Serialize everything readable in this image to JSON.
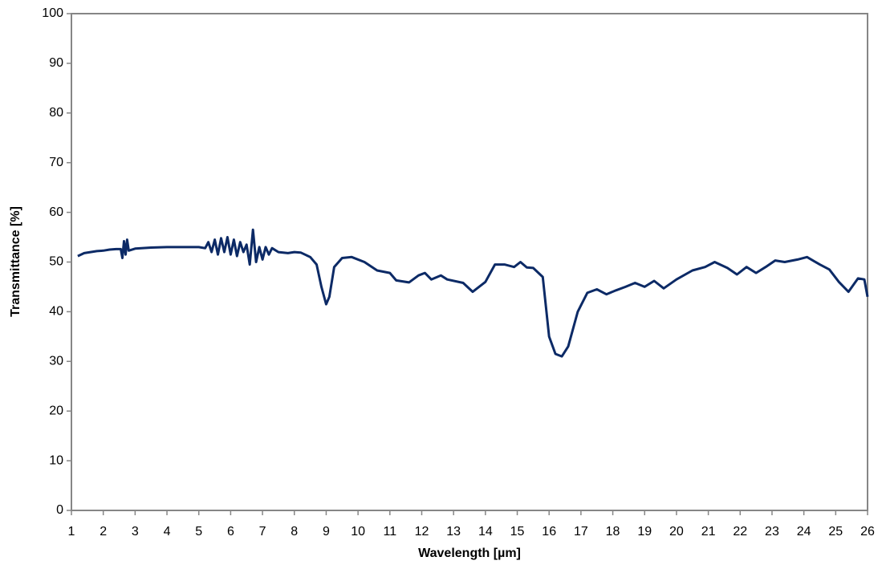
{
  "chart_data": {
    "type": "line",
    "xlabel": "Wavelength [µm]",
    "ylabel": "Transmittance [%]",
    "xlim": [
      1,
      26
    ],
    "ylim": [
      0,
      100
    ],
    "xticks": [
      1,
      2,
      3,
      4,
      5,
      6,
      7,
      8,
      9,
      10,
      11,
      12,
      13,
      14,
      15,
      16,
      17,
      18,
      19,
      20,
      21,
      22,
      23,
      24,
      25,
      26
    ],
    "yticks": [
      0,
      10,
      20,
      30,
      40,
      50,
      60,
      70,
      80,
      90,
      100
    ],
    "color": "#0c2a66",
    "x": [
      1.2,
      1.4,
      1.6,
      1.8,
      2.0,
      2.2,
      2.4,
      2.55,
      2.6,
      2.65,
      2.7,
      2.75,
      2.8,
      3.0,
      3.5,
      4.0,
      4.5,
      5.0,
      5.2,
      5.3,
      5.4,
      5.5,
      5.6,
      5.7,
      5.8,
      5.9,
      6.0,
      6.1,
      6.2,
      6.3,
      6.4,
      6.5,
      6.6,
      6.7,
      6.8,
      6.9,
      7.0,
      7.1,
      7.2,
      7.3,
      7.5,
      7.8,
      8.0,
      8.2,
      8.5,
      8.7,
      8.85,
      9.0,
      9.1,
      9.25,
      9.5,
      9.8,
      10.2,
      10.6,
      11.0,
      11.2,
      11.6,
      11.9,
      12.1,
      12.3,
      12.6,
      12.8,
      13.3,
      13.6,
      14.0,
      14.3,
      14.6,
      14.9,
      15.1,
      15.3,
      15.5,
      15.8,
      16.0,
      16.2,
      16.4,
      16.6,
      16.9,
      17.2,
      17.5,
      17.8,
      18.1,
      18.4,
      18.7,
      19.0,
      19.3,
      19.6,
      20.0,
      20.5,
      20.9,
      21.2,
      21.6,
      21.9,
      22.2,
      22.5,
      22.8,
      23.1,
      23.4,
      23.8,
      24.1,
      24.5,
      24.8,
      25.1,
      25.4,
      25.7,
      25.9,
      26.0
    ],
    "values": [
      51.2,
      51.8,
      52.0,
      52.2,
      52.3,
      52.5,
      52.6,
      52.6,
      50.8,
      54.2,
      51.5,
      54.5,
      52.3,
      52.7,
      52.9,
      53.0,
      53.0,
      53.0,
      52.8,
      54.0,
      52.0,
      54.5,
      51.5,
      54.8,
      52.0,
      55.0,
      51.5,
      54.5,
      51.2,
      54.0,
      52.0,
      53.5,
      49.5,
      56.5,
      50.0,
      53.0,
      50.5,
      53.0,
      51.5,
      52.8,
      52.0,
      51.8,
      52.0,
      51.9,
      51.0,
      49.5,
      45.0,
      41.5,
      43.0,
      49.0,
      50.8,
      51.0,
      50.0,
      48.3,
      47.8,
      46.3,
      45.9,
      47.3,
      47.8,
      46.5,
      47.3,
      46.5,
      45.8,
      44.0,
      46.0,
      49.5,
      49.5,
      49.0,
      50.0,
      48.9,
      48.8,
      47.0,
      35.0,
      31.5,
      31.0,
      33.0,
      40.0,
      43.8,
      44.5,
      43.5,
      44.3,
      45.0,
      45.8,
      45.0,
      46.2,
      44.7,
      46.5,
      48.3,
      49.0,
      50.0,
      48.8,
      47.5,
      49.0,
      47.8,
      49.0,
      50.3,
      50.0,
      50.5,
      51.0,
      49.5,
      48.5,
      46.0,
      44.0,
      46.7,
      46.5,
      43.0
    ]
  }
}
